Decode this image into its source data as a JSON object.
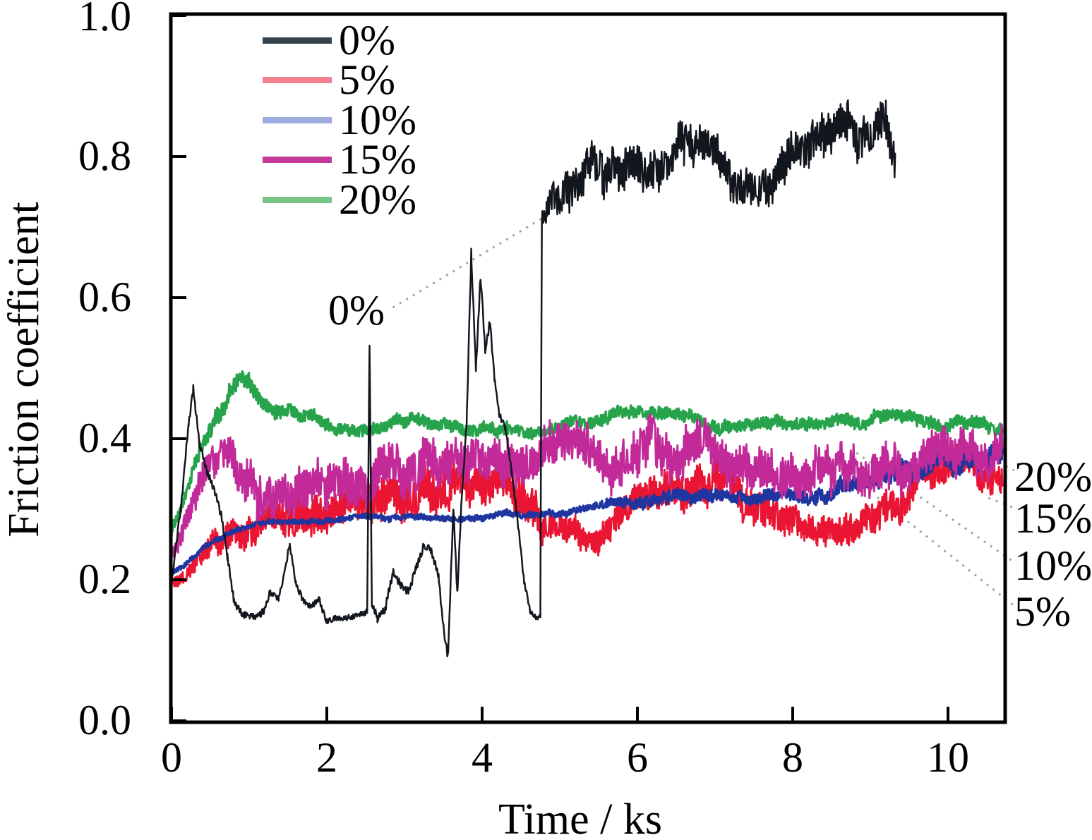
{
  "figure": {
    "y_axis": {
      "title": "Friction coefficient",
      "ticks": [
        "1.0",
        "0.8",
        "0.6",
        "0.4",
        "0.2",
        "0.0"
      ]
    },
    "x_axis": {
      "title": "Time / ks",
      "ticks": [
        "0",
        "2",
        "4",
        "6",
        "8",
        "10"
      ]
    }
  },
  "chart_data": {
    "type": "line",
    "title": "",
    "xlabel": "Time / ks",
    "ylabel": "Friction coefficient",
    "xlim": [
      0,
      10.73
    ],
    "ylim": [
      0.0,
      1.0
    ],
    "x_tick_values": [
      0,
      2,
      4,
      6,
      8,
      10
    ],
    "y_tick_values": [
      0.0,
      0.2,
      0.4,
      0.6,
      0.8,
      1.0
    ],
    "grid": false,
    "legend_position": "upper-left-inside",
    "frame_color": "#000000",
    "leader_line_color": "#9aa6ad",
    "draw_order": [
      1,
      2,
      4,
      3,
      0
    ],
    "series": [
      {
        "name": "0%",
        "color": "#12161d",
        "legend_color": "#36454d",
        "line_width": 2.5,
        "seed": 11,
        "noise": [
          [
            0,
            0.006
          ],
          [
            0.3,
            0.01
          ],
          [
            1.0,
            0.008
          ],
          [
            2.4,
            0.006
          ],
          [
            2.8,
            0.01
          ],
          [
            3.4,
            0.008
          ],
          [
            4.0,
            0.01
          ],
          [
            4.6,
            0.005
          ],
          [
            4.75,
            0.005
          ],
          [
            4.85,
            0.035
          ],
          [
            5.3,
            0.045
          ],
          [
            6.0,
            0.045
          ],
          [
            7.0,
            0.04
          ],
          [
            8.0,
            0.045
          ],
          [
            9.32,
            0.045
          ]
        ],
        "keypoints": [
          [
            0,
            0.195
          ],
          [
            0.12,
            0.3
          ],
          [
            0.22,
            0.42
          ],
          [
            0.28,
            0.47
          ],
          [
            0.36,
            0.4
          ],
          [
            0.46,
            0.36
          ],
          [
            0.56,
            0.33
          ],
          [
            0.64,
            0.295
          ],
          [
            0.72,
            0.235
          ],
          [
            0.8,
            0.175
          ],
          [
            0.9,
            0.152
          ],
          [
            1.05,
            0.15
          ],
          [
            1.18,
            0.158
          ],
          [
            1.28,
            0.185
          ],
          [
            1.38,
            0.175
          ],
          [
            1.45,
            0.21
          ],
          [
            1.52,
            0.257
          ],
          [
            1.6,
            0.2
          ],
          [
            1.7,
            0.175
          ],
          [
            1.8,
            0.165
          ],
          [
            1.9,
            0.175
          ],
          [
            2.0,
            0.145
          ],
          [
            2.1,
            0.15
          ],
          [
            2.2,
            0.148
          ],
          [
            2.32,
            0.152
          ],
          [
            2.45,
            0.155
          ],
          [
            2.52,
            0.16
          ],
          [
            2.55,
            0.54
          ],
          [
            2.58,
            0.17
          ],
          [
            2.65,
            0.15
          ],
          [
            2.75,
            0.16
          ],
          [
            2.85,
            0.215
          ],
          [
            2.94,
            0.198
          ],
          [
            3.05,
            0.185
          ],
          [
            3.15,
            0.22
          ],
          [
            3.25,
            0.245
          ],
          [
            3.34,
            0.24
          ],
          [
            3.44,
            0.2
          ],
          [
            3.5,
            0.13
          ],
          [
            3.56,
            0.085
          ],
          [
            3.63,
            0.3
          ],
          [
            3.68,
            0.175
          ],
          [
            3.74,
            0.32
          ],
          [
            3.8,
            0.42
          ],
          [
            3.86,
            0.665
          ],
          [
            3.92,
            0.5
          ],
          [
            3.98,
            0.63
          ],
          [
            4.04,
            0.52
          ],
          [
            4.1,
            0.56
          ],
          [
            4.16,
            0.48
          ],
          [
            4.22,
            0.43
          ],
          [
            4.3,
            0.41
          ],
          [
            4.38,
            0.35
          ],
          [
            4.46,
            0.28
          ],
          [
            4.54,
            0.2
          ],
          [
            4.62,
            0.155
          ],
          [
            4.72,
            0.145
          ],
          [
            4.75,
            0.15
          ],
          [
            4.77,
            0.715
          ],
          [
            4.83,
            0.73
          ],
          [
            4.9,
            0.75
          ],
          [
            5.0,
            0.74
          ],
          [
            5.1,
            0.76
          ],
          [
            5.25,
            0.78
          ],
          [
            5.4,
            0.8
          ],
          [
            5.55,
            0.78
          ],
          [
            5.7,
            0.79
          ],
          [
            5.85,
            0.8
          ],
          [
            6.0,
            0.805
          ],
          [
            6.15,
            0.79
          ],
          [
            6.3,
            0.8
          ],
          [
            6.45,
            0.81
          ],
          [
            6.6,
            0.8
          ],
          [
            6.75,
            0.8
          ],
          [
            6.9,
            0.795
          ],
          [
            7.05,
            0.79
          ],
          [
            7.2,
            0.77
          ],
          [
            7.35,
            0.76
          ],
          [
            7.5,
            0.775
          ],
          [
            7.65,
            0.78
          ],
          [
            7.8,
            0.785
          ],
          [
            7.95,
            0.79
          ],
          [
            8.1,
            0.8
          ],
          [
            8.25,
            0.805
          ],
          [
            8.4,
            0.81
          ],
          [
            8.55,
            0.825
          ],
          [
            8.7,
            0.83
          ],
          [
            8.85,
            0.81
          ],
          [
            9.0,
            0.8
          ],
          [
            9.1,
            0.825
          ],
          [
            9.2,
            0.82
          ],
          [
            9.32,
            0.78
          ]
        ]
      },
      {
        "name": "5%",
        "color": "#ea1532",
        "legend_color": "#f2808e",
        "line_width": 3,
        "seed": 7,
        "noise": [
          [
            0,
            0.012
          ],
          [
            0.5,
            0.025
          ],
          [
            1.0,
            0.035
          ],
          [
            1.8,
            0.045
          ],
          [
            4.5,
            0.045
          ],
          [
            4.9,
            0.03
          ],
          [
            5.8,
            0.032
          ],
          [
            6.5,
            0.04
          ],
          [
            7.6,
            0.04
          ],
          [
            8.2,
            0.03
          ],
          [
            9.3,
            0.035
          ],
          [
            10.7,
            0.035
          ]
        ],
        "keypoints": [
          [
            0,
            0.2
          ],
          [
            0.15,
            0.215
          ],
          [
            0.3,
            0.235
          ],
          [
            0.5,
            0.26
          ],
          [
            0.7,
            0.275
          ],
          [
            0.9,
            0.285
          ],
          [
            1.1,
            0.295
          ],
          [
            1.4,
            0.305
          ],
          [
            1.7,
            0.315
          ],
          [
            2.0,
            0.325
          ],
          [
            2.3,
            0.33
          ],
          [
            2.6,
            0.335
          ],
          [
            2.9,
            0.34
          ],
          [
            3.2,
            0.345
          ],
          [
            3.5,
            0.35
          ],
          [
            3.8,
            0.36
          ],
          [
            4.1,
            0.355
          ],
          [
            4.35,
            0.345
          ],
          [
            4.55,
            0.325
          ],
          [
            4.75,
            0.295
          ],
          [
            4.95,
            0.28
          ],
          [
            5.2,
            0.275
          ],
          [
            5.5,
            0.275
          ],
          [
            5.8,
            0.285
          ],
          [
            6.1,
            0.3
          ],
          [
            6.4,
            0.31
          ],
          [
            6.7,
            0.32
          ],
          [
            7.0,
            0.33
          ],
          [
            7.3,
            0.33
          ],
          [
            7.6,
            0.325
          ],
          [
            7.9,
            0.31
          ],
          [
            8.15,
            0.29
          ],
          [
            8.4,
            0.285
          ],
          [
            8.65,
            0.29
          ],
          [
            8.9,
            0.285
          ],
          [
            9.1,
            0.29
          ],
          [
            9.3,
            0.31
          ],
          [
            9.55,
            0.325
          ],
          [
            9.8,
            0.335
          ],
          [
            10.1,
            0.345
          ],
          [
            10.4,
            0.35
          ],
          [
            10.7,
            0.355
          ]
        ]
      },
      {
        "name": "10%",
        "color": "#1f35a0",
        "legend_color": "#9dabdf",
        "line_width": 3.5,
        "seed": 3,
        "noise": [
          [
            0,
            0.005
          ],
          [
            5.4,
            0.007
          ],
          [
            6.0,
            0.014
          ],
          [
            7.5,
            0.012
          ],
          [
            9.0,
            0.018
          ],
          [
            10.7,
            0.024
          ]
        ],
        "keypoints": [
          [
            0,
            0.21
          ],
          [
            0.2,
            0.225
          ],
          [
            0.4,
            0.245
          ],
          [
            0.6,
            0.26
          ],
          [
            0.8,
            0.27
          ],
          [
            1.0,
            0.275
          ],
          [
            1.3,
            0.28
          ],
          [
            1.6,
            0.283
          ],
          [
            2.0,
            0.286
          ],
          [
            2.4,
            0.287
          ],
          [
            2.8,
            0.286
          ],
          [
            3.2,
            0.288
          ],
          [
            3.6,
            0.29
          ],
          [
            4.0,
            0.292
          ],
          [
            4.4,
            0.294
          ],
          [
            4.8,
            0.296
          ],
          [
            5.2,
            0.298
          ],
          [
            5.6,
            0.302
          ],
          [
            5.9,
            0.31
          ],
          [
            6.2,
            0.322
          ],
          [
            6.5,
            0.325
          ],
          [
            6.8,
            0.318
          ],
          [
            7.1,
            0.312
          ],
          [
            7.4,
            0.31
          ],
          [
            7.7,
            0.312
          ],
          [
            8.0,
            0.315
          ],
          [
            8.3,
            0.32
          ],
          [
            8.6,
            0.326
          ],
          [
            8.9,
            0.33
          ],
          [
            9.2,
            0.34
          ],
          [
            9.5,
            0.352
          ],
          [
            9.8,
            0.365
          ],
          [
            10.1,
            0.376
          ],
          [
            10.4,
            0.385
          ],
          [
            10.7,
            0.39
          ]
        ]
      },
      {
        "name": "15%",
        "color": "#c22a9a",
        "legend_color": "#c33a9b",
        "line_width": 3,
        "seed": 19,
        "noise": [
          [
            0,
            0.02
          ],
          [
            0.6,
            0.04
          ],
          [
            1.5,
            0.048
          ],
          [
            9.0,
            0.045
          ],
          [
            10.7,
            0.045
          ]
        ],
        "keypoints": [
          [
            0,
            0.24
          ],
          [
            0.12,
            0.27
          ],
          [
            0.25,
            0.31
          ],
          [
            0.4,
            0.35
          ],
          [
            0.55,
            0.385
          ],
          [
            0.68,
            0.4
          ],
          [
            0.8,
            0.375
          ],
          [
            0.95,
            0.35
          ],
          [
            1.1,
            0.345
          ],
          [
            1.4,
            0.35
          ],
          [
            1.7,
            0.355
          ],
          [
            2.0,
            0.36
          ],
          [
            2.4,
            0.365
          ],
          [
            2.8,
            0.37
          ],
          [
            3.2,
            0.375
          ],
          [
            3.6,
            0.385
          ],
          [
            4.0,
            0.395
          ],
          [
            4.4,
            0.39
          ],
          [
            4.8,
            0.39
          ],
          [
            5.2,
            0.385
          ],
          [
            5.6,
            0.375
          ],
          [
            6.0,
            0.38
          ],
          [
            6.4,
            0.385
          ],
          [
            6.8,
            0.38
          ],
          [
            7.2,
            0.38
          ],
          [
            7.6,
            0.375
          ],
          [
            8.0,
            0.372
          ],
          [
            8.4,
            0.378
          ],
          [
            8.8,
            0.37
          ],
          [
            9.2,
            0.36
          ],
          [
            9.6,
            0.355
          ],
          [
            10.0,
            0.358
          ],
          [
            10.35,
            0.36
          ],
          [
            10.7,
            0.37
          ]
        ]
      },
      {
        "name": "20%",
        "color": "#27a34c",
        "legend_color": "#77c489",
        "line_width": 3.5,
        "seed": 5,
        "noise": [
          [
            0,
            0.012
          ],
          [
            0.7,
            0.02
          ],
          [
            1.8,
            0.013
          ],
          [
            10.7,
            0.014
          ]
        ],
        "keypoints": [
          [
            0,
            0.27
          ],
          [
            0.15,
            0.315
          ],
          [
            0.3,
            0.36
          ],
          [
            0.45,
            0.405
          ],
          [
            0.6,
            0.435
          ],
          [
            0.75,
            0.46
          ],
          [
            0.9,
            0.48
          ],
          [
            1.0,
            0.475
          ],
          [
            1.15,
            0.46
          ],
          [
            1.3,
            0.45
          ],
          [
            1.5,
            0.44
          ],
          [
            1.7,
            0.43
          ],
          [
            1.9,
            0.425
          ],
          [
            2.2,
            0.418
          ],
          [
            2.6,
            0.415
          ],
          [
            3.0,
            0.42
          ],
          [
            3.4,
            0.417
          ],
          [
            3.8,
            0.42
          ],
          [
            4.2,
            0.418
          ],
          [
            4.6,
            0.417
          ],
          [
            5.0,
            0.42
          ],
          [
            5.4,
            0.42
          ],
          [
            5.8,
            0.43
          ],
          [
            6.2,
            0.428
          ],
          [
            6.6,
            0.425
          ],
          [
            7.0,
            0.422
          ],
          [
            7.4,
            0.428
          ],
          [
            7.8,
            0.43
          ],
          [
            8.2,
            0.43
          ],
          [
            8.6,
            0.432
          ],
          [
            9.0,
            0.43
          ],
          [
            9.4,
            0.423
          ],
          [
            9.8,
            0.42
          ],
          [
            10.2,
            0.418
          ],
          [
            10.5,
            0.415
          ],
          [
            10.7,
            0.42
          ]
        ]
      }
    ],
    "annotations": [
      {
        "label": "0%",
        "leader": [
          [
            2.85,
            0.586
          ],
          [
            4.78,
            0.713
          ]
        ]
      },
      {
        "label": "20%",
        "leader": [
          [
            10.48,
            0.377
          ],
          [
            10.85,
            0.355
          ]
        ]
      },
      {
        "label": "15%",
        "leader": [
          [
            10.52,
            0.316
          ],
          [
            10.85,
            0.302
          ]
        ]
      },
      {
        "label": "10%",
        "leader": [
          [
            8.82,
            0.38
          ],
          [
            10.85,
            0.225
          ]
        ]
      },
      {
        "label": "5%",
        "leader": [
          [
            9.09,
            0.317
          ],
          [
            10.85,
            0.163
          ]
        ]
      }
    ]
  }
}
